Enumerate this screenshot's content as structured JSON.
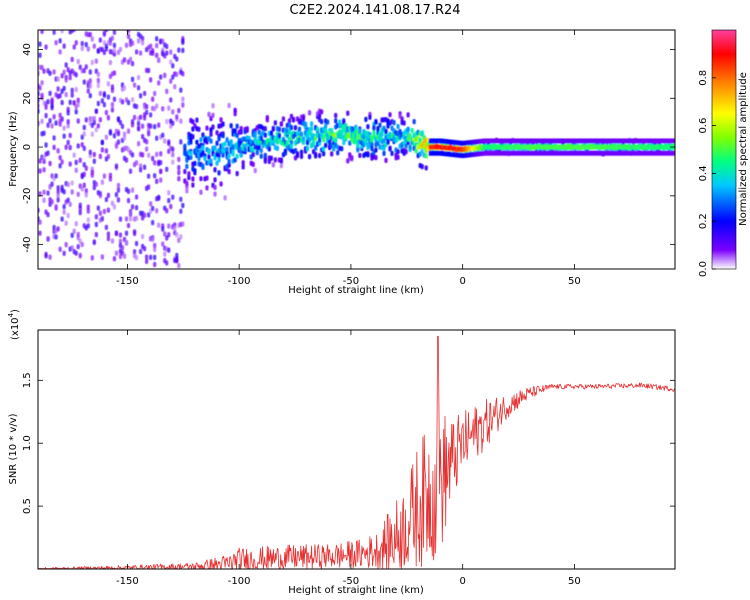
{
  "title": "C2E2.2024.141.08.17.R24",
  "chart_data": [
    {
      "type": "heatmap",
      "name": "spectrogram",
      "xlabel": "Height of straight line (km)",
      "ylabel": "Frequency (Hz)",
      "xlim": [
        -190,
        95
      ],
      "ylim": [
        -50,
        48
      ],
      "xticks": [
        -150,
        -100,
        -50,
        0,
        50
      ],
      "xtick_labels": [
        "-150",
        "-100",
        "-50",
        "0",
        "50"
      ],
      "yticks": [
        -40,
        -20,
        0,
        20,
        40
      ],
      "ytick_labels": [
        "-40",
        "-20",
        "0",
        "20",
        "40"
      ],
      "colorbar": {
        "label": "Normalized spectral amplitude",
        "range": [
          0,
          1
        ],
        "ticks": [
          0.0,
          0.2,
          0.4,
          0.6,
          0.8
        ],
        "tick_labels": [
          "0.0",
          "0.2",
          "0.4",
          "0.6",
          "0.8"
        ],
        "colors": [
          "#ffffff",
          "#7a00ff",
          "#0000ff",
          "#00c8ff",
          "#00ff80",
          "#80ff00",
          "#ffff00",
          "#ff8000",
          "#ff0000",
          "#ff40a0"
        ]
      },
      "ridge": {
        "x": [
          -150,
          -130,
          -110,
          -90,
          -70,
          -55,
          -40,
          -25,
          -15,
          -10,
          0,
          10,
          30,
          60,
          95
        ],
        "frequency": [
          2,
          -2,
          -2,
          2,
          4,
          5,
          4,
          4,
          0,
          0,
          -1,
          0,
          0,
          0,
          0
        ],
        "amplitude": [
          0.25,
          0.3,
          0.35,
          0.4,
          0.45,
          0.5,
          0.45,
          0.4,
          0.85,
          0.9,
          0.85,
          0.45,
          0.5,
          0.5,
          0.45
        ]
      }
    },
    {
      "type": "line",
      "name": "snr",
      "xlabel": "Height of straight line (km)",
      "ylabel": "SNR (10 * v/v)",
      "scale_label": "(x10",
      "scale_exp": "4",
      "scale_close": ")",
      "xlim": [
        -190,
        95
      ],
      "ylim": [
        0,
        1.9
      ],
      "xticks": [
        -150,
        -100,
        -50,
        0,
        50
      ],
      "xtick_labels": [
        "-150",
        "-100",
        "-50",
        "0",
        "50"
      ],
      "yticks": [
        0.5,
        1.0,
        1.5
      ],
      "ytick_labels": [
        "0.5",
        "1.0",
        "1.5"
      ],
      "color": "#e83030",
      "envelope": {
        "x": [
          -190,
          -150,
          -120,
          -105,
          -100,
          -80,
          -60,
          -45,
          -38,
          -30,
          -25,
          -20,
          -15,
          -12,
          -10,
          -5,
          0,
          10,
          20,
          30,
          40,
          60,
          80,
          95
        ],
        "base": [
          0.0,
          0.01,
          0.02,
          0.04,
          0.07,
          0.09,
          0.1,
          0.12,
          0.15,
          0.25,
          0.35,
          0.5,
          0.6,
          0.65,
          0.7,
          0.85,
          1.0,
          1.15,
          1.3,
          1.4,
          1.45,
          1.45,
          1.46,
          1.43
        ],
        "noise": [
          0.01,
          0.02,
          0.03,
          0.08,
          0.1,
          0.1,
          0.1,
          0.12,
          0.15,
          0.3,
          0.35,
          0.5,
          0.55,
          0.6,
          0.6,
          0.35,
          0.25,
          0.2,
          0.1,
          0.05,
          0.02,
          0.02,
          0.02,
          0.02
        ]
      },
      "peak": {
        "x": -11,
        "y": 1.85
      }
    }
  ]
}
